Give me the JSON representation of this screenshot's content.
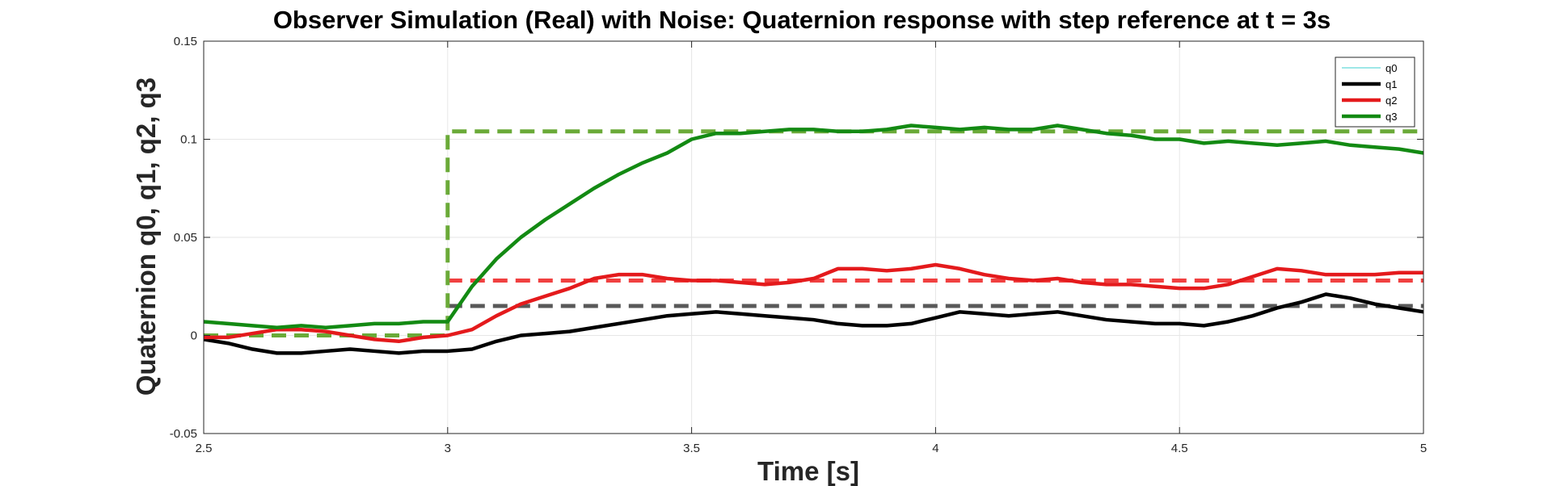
{
  "chart_data": {
    "type": "line",
    "title": "Observer Simulation (Real) with Noise: Quaternion response with step reference at t = 3s",
    "xlabel": "Time [s]",
    "ylabel": "Quaternion q0, q1, q2, q3",
    "xlim": [
      2.5,
      5
    ],
    "ylim": [
      -0.05,
      0.15
    ],
    "xticks": [
      2.5,
      3,
      3.5,
      4,
      4.5,
      5
    ],
    "xtick_labels": [
      "2.5",
      "3",
      "3.5",
      "4",
      "4.5",
      "5"
    ],
    "yticks": [
      -0.05,
      0,
      0.05,
      0.1,
      0.15
    ],
    "ytick_labels": [
      "-0.05",
      "0",
      "0.05",
      "0.1",
      "0.15"
    ],
    "grid": true,
    "legend_position": "top-right",
    "series": [
      {
        "name": "q0",
        "color": "#7fdfdf",
        "x": [],
        "y": []
      },
      {
        "name": "q1",
        "color": "#000000",
        "x": [
          2.5,
          2.55,
          2.6,
          2.65,
          2.7,
          2.75,
          2.8,
          2.85,
          2.9,
          2.95,
          3.0,
          3.05,
          3.1,
          3.15,
          3.2,
          3.25,
          3.3,
          3.35,
          3.4,
          3.45,
          3.5,
          3.55,
          3.6,
          3.65,
          3.7,
          3.75,
          3.8,
          3.85,
          3.9,
          3.95,
          4.0,
          4.05,
          4.1,
          4.15,
          4.2,
          4.25,
          4.3,
          4.35,
          4.4,
          4.45,
          4.5,
          4.55,
          4.6,
          4.65,
          4.7,
          4.75,
          4.8,
          4.85,
          4.9,
          4.95,
          5.0
        ],
        "y": [
          -0.002,
          -0.004,
          -0.007,
          -0.009,
          -0.009,
          -0.008,
          -0.007,
          -0.008,
          -0.009,
          -0.008,
          -0.008,
          -0.007,
          -0.003,
          0.0,
          0.001,
          0.002,
          0.004,
          0.006,
          0.008,
          0.01,
          0.011,
          0.012,
          0.011,
          0.01,
          0.009,
          0.008,
          0.006,
          0.005,
          0.005,
          0.006,
          0.009,
          0.012,
          0.011,
          0.01,
          0.011,
          0.012,
          0.01,
          0.008,
          0.007,
          0.006,
          0.006,
          0.005,
          0.007,
          0.01,
          0.014,
          0.017,
          0.021,
          0.019,
          0.016,
          0.014,
          0.012
        ]
      },
      {
        "name": "q2",
        "color": "#e41a1c",
        "x": [
          2.5,
          2.55,
          2.6,
          2.65,
          2.7,
          2.75,
          2.8,
          2.85,
          2.9,
          2.95,
          3.0,
          3.05,
          3.1,
          3.15,
          3.2,
          3.25,
          3.3,
          3.35,
          3.4,
          3.45,
          3.5,
          3.55,
          3.6,
          3.65,
          3.7,
          3.75,
          3.8,
          3.85,
          3.9,
          3.95,
          4.0,
          4.05,
          4.1,
          4.15,
          4.2,
          4.25,
          4.3,
          4.35,
          4.4,
          4.45,
          4.5,
          4.55,
          4.6,
          4.65,
          4.7,
          4.75,
          4.8,
          4.85,
          4.9,
          4.95,
          5.0
        ],
        "y": [
          -0.001,
          -0.001,
          0.001,
          0.003,
          0.003,
          0.002,
          0.0,
          -0.002,
          -0.003,
          -0.001,
          0.0,
          0.003,
          0.01,
          0.016,
          0.02,
          0.024,
          0.029,
          0.031,
          0.031,
          0.029,
          0.028,
          0.028,
          0.027,
          0.026,
          0.027,
          0.029,
          0.034,
          0.034,
          0.033,
          0.034,
          0.036,
          0.034,
          0.031,
          0.029,
          0.028,
          0.029,
          0.027,
          0.026,
          0.026,
          0.025,
          0.024,
          0.024,
          0.026,
          0.03,
          0.034,
          0.033,
          0.031,
          0.031,
          0.031,
          0.032,
          0.032
        ]
      },
      {
        "name": "q3",
        "color": "#138a13",
        "x": [
          2.5,
          2.55,
          2.6,
          2.65,
          2.7,
          2.75,
          2.8,
          2.85,
          2.9,
          2.95,
          3.0,
          3.05,
          3.1,
          3.15,
          3.2,
          3.25,
          3.3,
          3.35,
          3.4,
          3.45,
          3.5,
          3.55,
          3.6,
          3.65,
          3.7,
          3.75,
          3.8,
          3.85,
          3.9,
          3.95,
          4.0,
          4.05,
          4.1,
          4.15,
          4.2,
          4.25,
          4.3,
          4.35,
          4.4,
          4.45,
          4.5,
          4.55,
          4.6,
          4.65,
          4.7,
          4.75,
          4.8,
          4.85,
          4.9,
          4.95,
          5.0
        ],
        "y": [
          0.007,
          0.006,
          0.005,
          0.004,
          0.005,
          0.004,
          0.005,
          0.006,
          0.006,
          0.007,
          0.007,
          0.025,
          0.039,
          0.05,
          0.059,
          0.067,
          0.075,
          0.082,
          0.088,
          0.093,
          0.1,
          0.103,
          0.103,
          0.104,
          0.105,
          0.105,
          0.104,
          0.104,
          0.105,
          0.107,
          0.106,
          0.105,
          0.106,
          0.105,
          0.105,
          0.107,
          0.105,
          0.103,
          0.102,
          0.1,
          0.1,
          0.098,
          0.099,
          0.098,
          0.097,
          0.098,
          0.099,
          0.097,
          0.096,
          0.095,
          0.093
        ]
      }
    ],
    "reference_lines": [
      {
        "color": "#595959",
        "x": [
          3.0,
          5.0
        ],
        "y": [
          0.015,
          0.015
        ]
      },
      {
        "color": "#f04040",
        "x": [
          3.0,
          5.0
        ],
        "y": [
          0.028,
          0.028
        ]
      },
      {
        "color": "#6aaa38",
        "x": [
          2.5,
          3.0,
          3.0,
          5.0
        ],
        "y": [
          0.0,
          0.0,
          0.104,
          0.104
        ]
      }
    ]
  }
}
